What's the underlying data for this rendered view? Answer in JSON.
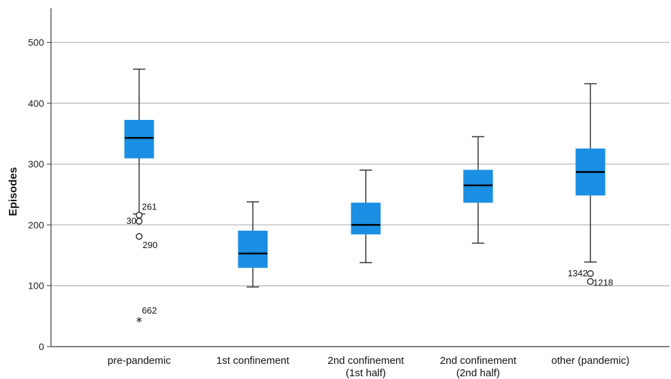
{
  "chart_data": {
    "type": "boxplot",
    "ylabel": "Episodes",
    "xlabel": "",
    "ylim": [
      0,
      550
    ],
    "yticks": [
      0,
      100,
      200,
      300,
      400,
      500
    ],
    "grid": "horizontal",
    "box_color": "#1a8fe3",
    "median_color": "#000000",
    "categories": [
      {
        "line1": "pre-pandemic",
        "line2": ""
      },
      {
        "line1": "1st confinement",
        "line2": ""
      },
      {
        "line1": "2nd confinement",
        "line2": "(1st half)"
      },
      {
        "line1": "2nd confinement",
        "line2": "(2nd half)"
      },
      {
        "line1": "other (pandemic)",
        "line2": ""
      }
    ],
    "boxes": [
      {
        "whisker_low": 218,
        "q1": 310,
        "median": 343,
        "q3": 372,
        "whisker_high": 456
      },
      {
        "whisker_low": 98,
        "q1": 130,
        "median": 153,
        "q3": 190,
        "whisker_high": 238
      },
      {
        "whisker_low": 138,
        "q1": 185,
        "median": 200,
        "q3": 236,
        "whisker_high": 290
      },
      {
        "whisker_low": 170,
        "q1": 237,
        "median": 265,
        "q3": 290,
        "whisker_high": 345
      },
      {
        "whisker_low": 139,
        "q1": 249,
        "median": 287,
        "q3": 325,
        "whisker_high": 432
      }
    ],
    "outliers": [
      {
        "cat": 0,
        "value": 216,
        "marker": "circle",
        "label": "261",
        "label_pos": "upper-right"
      },
      {
        "cat": 0,
        "value": 206,
        "marker": "circle",
        "label": "30",
        "label_pos": "left"
      },
      {
        "cat": 0,
        "value": 181,
        "marker": "circle",
        "label": "290",
        "label_pos": "lower-right"
      },
      {
        "cat": 0,
        "value": 43,
        "marker": "star",
        "label": "662",
        "label_pos": "upper-right"
      },
      {
        "cat": 4,
        "value": 120,
        "marker": "circle",
        "label": "1342",
        "label_pos": "left"
      },
      {
        "cat": 4,
        "value": 107,
        "marker": "circle",
        "label": "1218",
        "label_pos": "right"
      }
    ]
  }
}
